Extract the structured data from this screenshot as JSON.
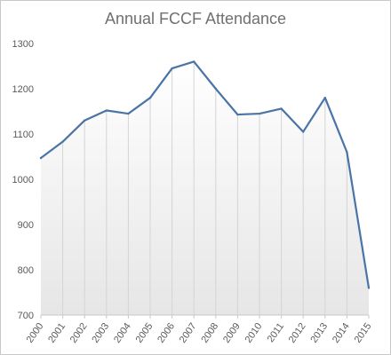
{
  "chart_data": {
    "type": "line",
    "title": "Annual FCCF Attendance",
    "xlabel": "",
    "ylabel": "",
    "categories": [
      "2000",
      "2001",
      "2002",
      "2003",
      "2004",
      "2005",
      "2006",
      "2007",
      "2008",
      "2009",
      "2010",
      "2011",
      "2012",
      "2013",
      "2014",
      "2015"
    ],
    "series": [
      {
        "values": [
          1047,
          1083,
          1130,
          1152,
          1145,
          1180,
          1245,
          1260,
          1200,
          1143,
          1145,
          1156,
          1105,
          1180,
          1060,
          760
        ]
      }
    ],
    "ylim": [
      700,
      1300
    ],
    "yticks": [
      700,
      800,
      900,
      1000,
      1100,
      1200,
      1300
    ],
    "grid": "vertical",
    "legend": "none",
    "line_color": "#4a74a6",
    "area_fill_top": "#ffffff",
    "area_fill_bottom": "#e6e6e6"
  }
}
